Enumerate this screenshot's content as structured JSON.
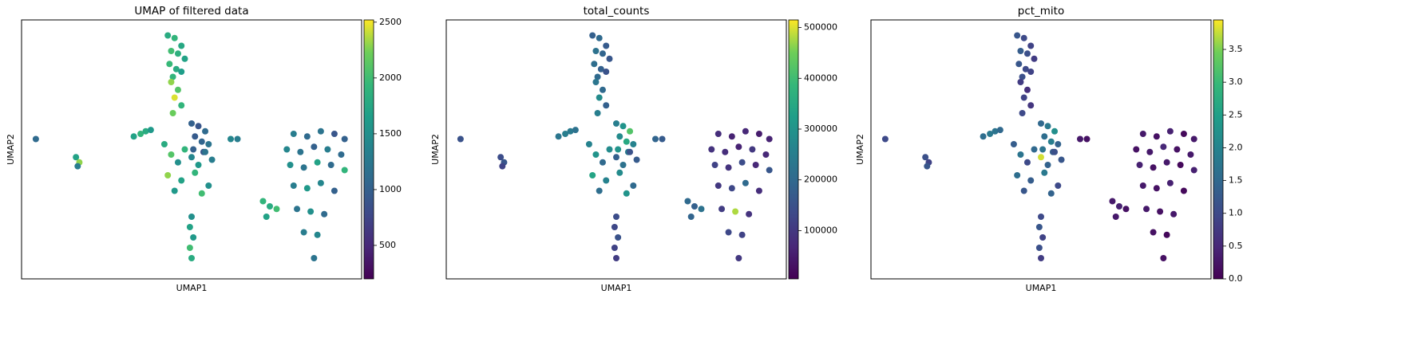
{
  "chart_data": [
    {
      "type": "scatter",
      "title": "UMAP of filtered data",
      "xlabel": "UMAP1",
      "ylabel": "UMAP2",
      "colormap": "viridis",
      "xlim": [
        0,
        100
      ],
      "ylim": [
        0,
        100
      ],
      "x": [
        43,
        45,
        47,
        44,
        46,
        48,
        43.5,
        45.5,
        47,
        44.5,
        44,
        46,
        45,
        47,
        44.5,
        50,
        52,
        54,
        51,
        53,
        55,
        50.5,
        53.5,
        4.2,
        16,
        17,
        16.5,
        33,
        35,
        36.5,
        38,
        42,
        44,
        46,
        48,
        50,
        52,
        54,
        56,
        43,
        47,
        51,
        55,
        45,
        53,
        61.5,
        63.5,
        50,
        49.5,
        50.5,
        49.5,
        50,
        80,
        84,
        88,
        92,
        95,
        78,
        82,
        86,
        90,
        94,
        79,
        83,
        87,
        91,
        95,
        80,
        84,
        88,
        92,
        81,
        85,
        89,
        83,
        87,
        86,
        71,
        73,
        75,
        72
      ],
      "y": [
        94,
        93,
        90,
        88,
        87,
        85,
        83,
        81,
        80,
        78,
        76,
        73,
        70,
        67,
        64,
        60,
        59,
        57,
        55,
        53,
        52,
        50,
        49,
        54,
        47,
        45,
        43.5,
        55,
        56,
        57,
        57.5,
        52,
        48,
        45,
        50,
        47,
        44,
        49,
        46,
        40,
        38,
        41,
        36,
        34,
        33,
        54,
        54,
        24,
        20,
        16,
        12,
        8,
        56,
        55,
        57,
        56,
        54,
        50,
        49,
        51,
        50,
        48,
        44,
        43,
        45,
        44,
        42,
        36,
        35,
        37,
        34,
        27,
        26,
        25,
        18,
        17,
        8,
        30,
        28,
        27,
        24
      ],
      "c": [
        1800,
        1900,
        1750,
        2000,
        1850,
        1700,
        1950,
        1800,
        1650,
        1900,
        2300,
        2100,
        2450,
        1900,
        2200,
        1000,
        900,
        1100,
        950,
        1050,
        1200,
        1000,
        900,
        1100,
        1700,
        2300,
        1300,
        1700,
        1900,
        1800,
        1600,
        1800,
        2100,
        1500,
        1900,
        1400,
        1600,
        1200,
        1300,
        2300,
        1700,
        1900,
        1500,
        1600,
        2000,
        1400,
        1300,
        1500,
        1700,
        1600,
        2000,
        1800,
        1300,
        1100,
        1200,
        900,
        1000,
        1400,
        1200,
        1000,
        1300,
        1100,
        1500,
        1200,
        1700,
        1100,
        1900,
        1300,
        1600,
        1400,
        1000,
        1200,
        1500,
        1100,
        1300,
        1400,
        1200,
        1900,
        1800,
        2000,
        1700
      ],
      "clim": [
        200,
        2520
      ],
      "cticks": [
        500,
        1000,
        1500,
        2000,
        2500
      ]
    },
    {
      "type": "scatter",
      "title": "total_counts",
      "xlabel": "UMAP1",
      "ylabel": "UMAP2",
      "colormap": "viridis",
      "xlim": [
        0,
        100
      ],
      "ylim": [
        0,
        100
      ],
      "x": [
        43,
        45,
        47,
        44,
        46,
        48,
        43.5,
        45.5,
        47,
        44.5,
        44,
        46,
        45,
        47,
        44.5,
        50,
        52,
        54,
        51,
        53,
        55,
        50.5,
        53.5,
        4.2,
        16,
        17,
        16.5,
        33,
        35,
        36.5,
        38,
        42,
        44,
        46,
        48,
        50,
        52,
        54,
        56,
        43,
        47,
        51,
        55,
        45,
        53,
        61.5,
        63.5,
        50,
        49.5,
        50.5,
        49.5,
        50,
        80,
        84,
        88,
        92,
        95,
        78,
        82,
        86,
        90,
        94,
        79,
        83,
        87,
        91,
        95,
        80,
        84,
        88,
        92,
        81,
        85,
        89,
        83,
        87,
        86,
        71,
        73,
        75,
        72
      ],
      "y": [
        94,
        93,
        90,
        88,
        87,
        85,
        83,
        81,
        80,
        78,
        76,
        73,
        70,
        67,
        64,
        60,
        59,
        57,
        55,
        53,
        52,
        50,
        49,
        54,
        47,
        45,
        43.5,
        55,
        56,
        57,
        57.5,
        52,
        48,
        45,
        50,
        47,
        44,
        49,
        46,
        40,
        38,
        41,
        36,
        34,
        33,
        54,
        54,
        24,
        20,
        16,
        12,
        8,
        56,
        55,
        57,
        56,
        54,
        50,
        49,
        51,
        50,
        48,
        44,
        43,
        45,
        44,
        42,
        36,
        35,
        37,
        34,
        27,
        26,
        25,
        18,
        17,
        8,
        30,
        28,
        27,
        24
      ],
      "c": [
        180000,
        200000,
        170000,
        220000,
        190000,
        160000,
        210000,
        180000,
        150000,
        200000,
        230000,
        200000,
        280000,
        180000,
        250000,
        250000,
        300000,
        420000,
        280000,
        350000,
        260000,
        300000,
        240000,
        150000,
        140000,
        160000,
        120000,
        230000,
        250000,
        240000,
        220000,
        260000,
        300000,
        200000,
        280000,
        180000,
        220000,
        150000,
        170000,
        340000,
        260000,
        280000,
        200000,
        210000,
        300000,
        190000,
        170000,
        140000,
        130000,
        150000,
        120000,
        110000,
        80000,
        60000,
        70000,
        50000,
        60000,
        90000,
        80000,
        60000,
        100000,
        70000,
        120000,
        90000,
        140000,
        70000,
        160000,
        100000,
        130000,
        200000,
        80000,
        110000,
        480000,
        90000,
        130000,
        120000,
        100000,
        200000,
        180000,
        220000,
        190000
      ],
      "clim": [
        5000,
        515000
      ],
      "cticks": [
        100000,
        200000,
        300000,
        400000,
        500000
      ]
    },
    {
      "type": "scatter",
      "title": "pct_mito",
      "xlabel": "UMAP1",
      "ylabel": "UMAP2",
      "colormap": "viridis",
      "xlim": [
        0,
        100
      ],
      "ylim": [
        0,
        100
      ],
      "x": [
        43,
        45,
        47,
        44,
        46,
        48,
        43.5,
        45.5,
        47,
        44.5,
        44,
        46,
        45,
        47,
        44.5,
        50,
        52,
        54,
        51,
        53,
        55,
        50.5,
        53.5,
        4.2,
        16,
        17,
        16.5,
        33,
        35,
        36.5,
        38,
        42,
        44,
        46,
        48,
        50,
        52,
        54,
        56,
        43,
        47,
        51,
        55,
        45,
        53,
        61.5,
        63.5,
        50,
        49.5,
        50.5,
        49.5,
        50,
        80,
        84,
        88,
        92,
        95,
        78,
        82,
        86,
        90,
        94,
        79,
        83,
        87,
        91,
        95,
        80,
        84,
        88,
        92,
        81,
        85,
        89,
        83,
        87,
        86,
        71,
        73,
        75,
        72
      ],
      "y": [
        94,
        93,
        90,
        88,
        87,
        85,
        83,
        81,
        80,
        78,
        76,
        73,
        70,
        67,
        64,
        60,
        59,
        57,
        55,
        53,
        52,
        50,
        49,
        54,
        47,
        45,
        43.5,
        55,
        56,
        57,
        57.5,
        52,
        48,
        45,
        50,
        47,
        44,
        49,
        46,
        40,
        38,
        41,
        36,
        34,
        33,
        54,
        54,
        24,
        20,
        16,
        12,
        8,
        56,
        55,
        57,
        56,
        54,
        50,
        49,
        51,
        50,
        48,
        44,
        43,
        45,
        44,
        42,
        36,
        35,
        37,
        34,
        27,
        26,
        25,
        18,
        17,
        8,
        30,
        28,
        27,
        24
      ],
      "c": [
        1.2,
        1.0,
        0.9,
        1.3,
        1.1,
        0.8,
        1.2,
        1.0,
        0.9,
        1.1,
        0.8,
        0.6,
        0.9,
        0.7,
        1.0,
        1.5,
        1.8,
        2.2,
        1.6,
        1.9,
        1.4,
        1.7,
        1.3,
        1.0,
        1.1,
        0.9,
        1.2,
        1.6,
        1.8,
        1.7,
        1.5,
        1.3,
        1.7,
        1.0,
        1.5,
        3.8,
        1.4,
        1.1,
        1.2,
        1.6,
        1.3,
        1.8,
        1.0,
        1.2,
        1.4,
        0.3,
        0.2,
        1.0,
        1.2,
        0.9,
        1.1,
        0.8,
        0.3,
        0.2,
        0.4,
        0.1,
        0.3,
        0.2,
        0.3,
        0.5,
        0.2,
        0.3,
        0.4,
        0.2,
        0.3,
        0.1,
        0.4,
        0.3,
        0.2,
        0.4,
        0.1,
        0.3,
        0.2,
        0.3,
        0.2,
        0.1,
        0.2,
        0.3,
        0.4,
        0.2,
        0.3
      ],
      "clim": [
        0,
        3.95
      ],
      "cticks": [
        {
          "value": 0,
          "label": "0.0"
        },
        0.5,
        {
          "value": 1,
          "label": "1.0"
        },
        1.5,
        {
          "value": 2,
          "label": "2.0"
        },
        2.5,
        {
          "value": 3,
          "label": "3.0"
        },
        3.5
      ]
    }
  ]
}
